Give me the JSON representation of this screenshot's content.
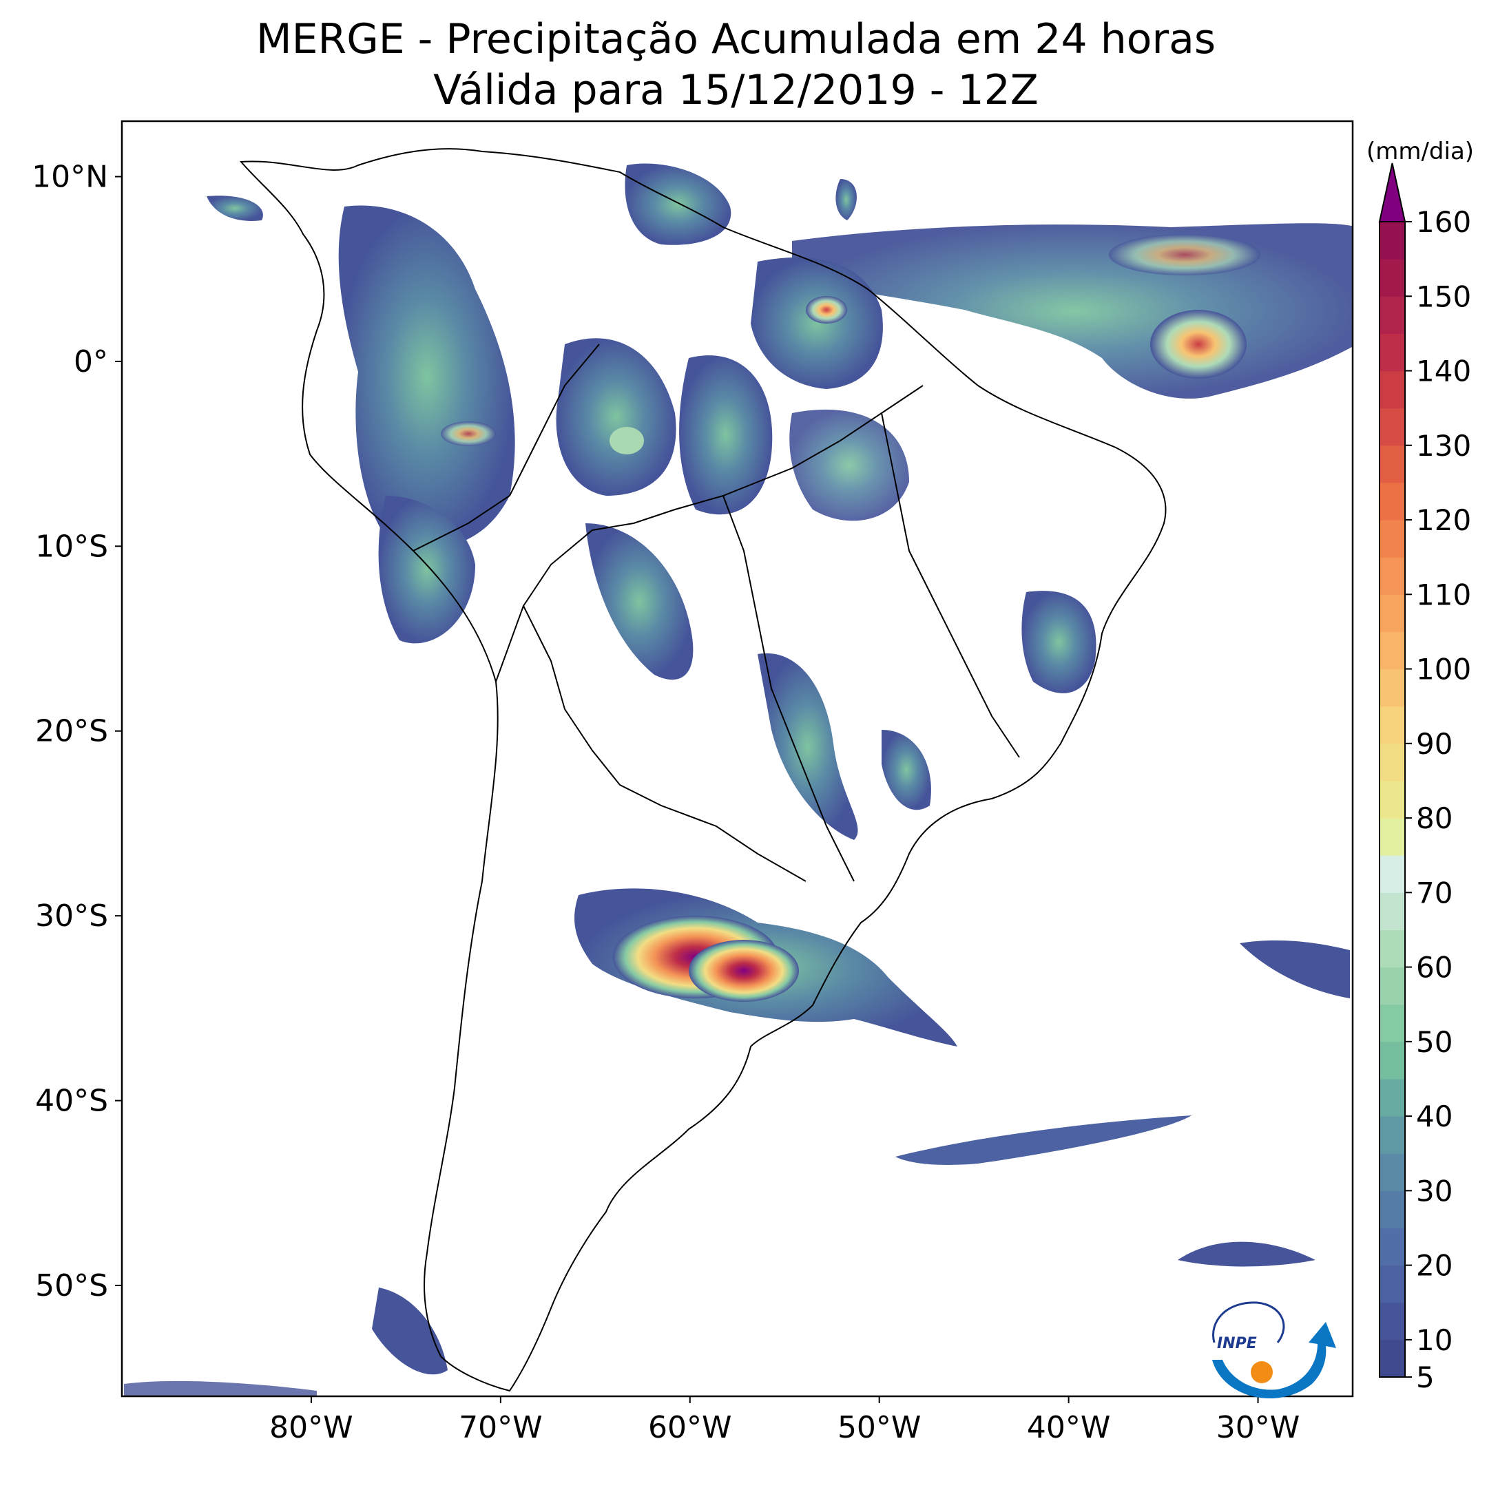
{
  "title": {
    "line1": "MERGE - Precipitação Acumulada em 24 horas",
    "line2": "Válida para 15/12/2019 - 12Z"
  },
  "map": {
    "extent_lon": [
      -90,
      -25
    ],
    "extent_lat": [
      -56,
      13
    ],
    "lat_ticks": [
      {
        "value": 10,
        "label": "10°N"
      },
      {
        "value": 0,
        "label": "0°"
      },
      {
        "value": -10,
        "label": "10°S"
      },
      {
        "value": -20,
        "label": "20°S"
      },
      {
        "value": -30,
        "label": "30°S"
      },
      {
        "value": -40,
        "label": "40°S"
      },
      {
        "value": -50,
        "label": "50°S"
      }
    ],
    "lon_ticks": [
      {
        "value": -80,
        "label": "80°W"
      },
      {
        "value": -70,
        "label": "70°W"
      },
      {
        "value": -60,
        "label": "60°W"
      },
      {
        "value": -50,
        "label": "50°W"
      },
      {
        "value": -40,
        "label": "40°W"
      },
      {
        "value": -30,
        "label": "30°W"
      }
    ]
  },
  "colorbar": {
    "unit": "(mm/dia)",
    "levels": [
      5,
      10,
      15,
      20,
      25,
      30,
      35,
      40,
      45,
      50,
      55,
      60,
      65,
      70,
      75,
      80,
      85,
      90,
      95,
      100,
      105,
      110,
      115,
      120,
      125,
      130,
      135,
      140,
      145,
      150,
      155,
      160
    ],
    "tick_labels": [
      "5",
      "10",
      "20",
      "30",
      "40",
      "50",
      "60",
      "70",
      "80",
      "90",
      "100",
      "110",
      "120",
      "130",
      "140",
      "150",
      "160"
    ],
    "colors": [
      "#3f4a8f",
      "#46549a",
      "#4c62a3",
      "#526ea9",
      "#557ba7",
      "#5a8aa6",
      "#5f9aa4",
      "#67aba2",
      "#75bf9f",
      "#86caa4",
      "#99d2ac",
      "#aedbb8",
      "#c3e4cf",
      "#d6eee6",
      "#e3f0a0",
      "#ece78c",
      "#f3dd84",
      "#f8d37e",
      "#f8c472",
      "#f9b468",
      "#f6a45e",
      "#f49456",
      "#f1834d",
      "#ec7146",
      "#e35f43",
      "#d74c44",
      "#cb3c45",
      "#be2e48",
      "#b0234a",
      "#a3194c",
      "#961150"
    ],
    "over_color": "#800080"
  },
  "logo": {
    "text": "INPE"
  }
}
